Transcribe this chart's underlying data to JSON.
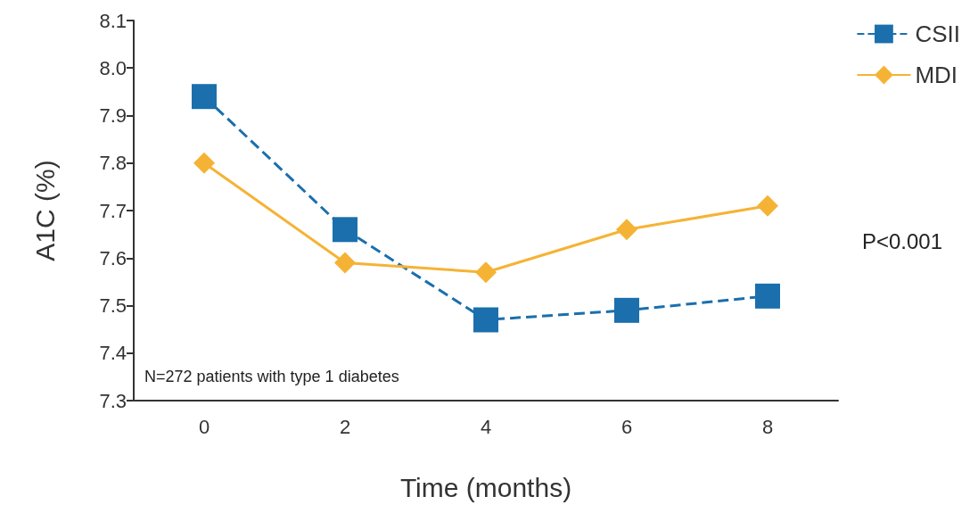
{
  "chart_data": {
    "type": "line",
    "xlabel": "Time (months)",
    "ylabel": "A1C (%)",
    "categories": [
      "0",
      "2",
      "4",
      "6",
      "8"
    ],
    "series": [
      {
        "name": "CSII",
        "color": "#1b6fad",
        "values": [
          7.94,
          7.66,
          7.47,
          7.49,
          7.52
        ],
        "marker": "square",
        "line_style": "dashed"
      },
      {
        "name": "MDI",
        "color": "#f5b335",
        "values": [
          7.8,
          7.59,
          7.57,
          7.66,
          7.71
        ],
        "marker": "diamond",
        "line_style": "solid"
      }
    ],
    "ylim": [
      7.3,
      8.1
    ],
    "yticks": [
      7.3,
      7.4,
      7.5,
      7.6,
      7.7,
      7.8,
      7.9,
      {
        "value": 8,
        "label": "8.0"
      },
      8.1
    ],
    "annotations": [
      "P<0.001",
      "N=272 patients with type 1 diabetes"
    ],
    "legend": "top right",
    "grid": false
  }
}
